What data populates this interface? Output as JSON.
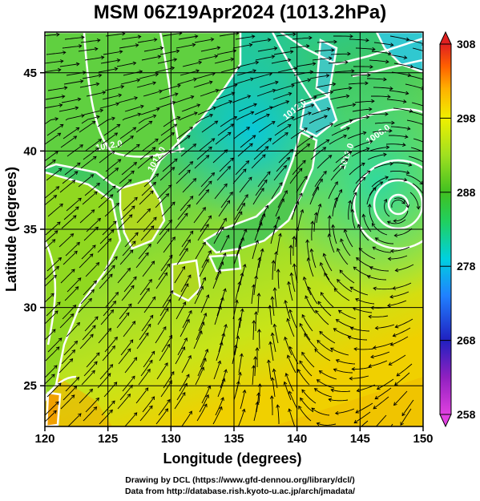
{
  "title": "MSM 06Z19Apr2024 (1013.2hPa)",
  "x_axis": {
    "label": "Longitude (degrees)",
    "ticks": [
      120,
      125,
      130,
      135,
      140,
      145,
      150
    ],
    "range": [
      120,
      150
    ]
  },
  "y_axis": {
    "label": "Latitude  (degrees)",
    "ticks": [
      25,
      30,
      35,
      40,
      45
    ],
    "range": [
      22.4,
      47.6
    ]
  },
  "colorbar": {
    "ticks": [
      258,
      268,
      278,
      288,
      298,
      308
    ],
    "range": [
      258,
      308
    ],
    "colors": [
      "#e040e0",
      "#9020c0",
      "#2020c0",
      "#2080ff",
      "#00d0e0",
      "#20d060",
      "#40c020",
      "#a0e020",
      "#f0f000",
      "#ffb000",
      "#ff6000",
      "#e02020"
    ]
  },
  "contour_labels": [
    "1012.0",
    "1012.0",
    "1012.0",
    "1012.0",
    "1006.0"
  ],
  "colors": {
    "land_outline": "#ffffff",
    "streamline": "#000000",
    "contour": "#ffffff"
  },
  "credit": {
    "line1": "Drawing by DCL (https://www.gfd-dennou.org/library/dcl/)",
    "line2": "Data from http://database.rish.kyoto-u.ac.jp/arch/jmadata/"
  }
}
